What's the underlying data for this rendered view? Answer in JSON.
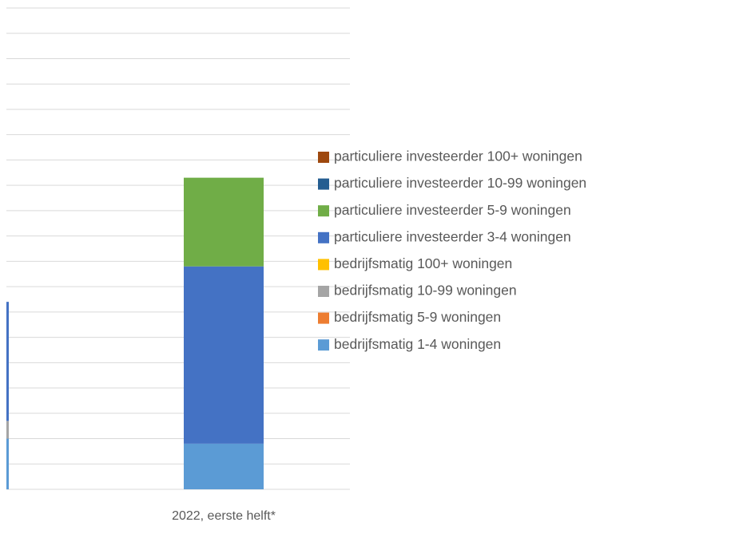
{
  "chart_data": {
    "type": "stacked_bar",
    "categories": [
      null,
      "2022, eerste helft*"
    ],
    "series": [
      {
        "name": "bedrijfsmatig 1-4 woningen",
        "color": "#5b9bd5",
        "values": [
          2.0,
          1.8
        ]
      },
      {
        "name": "bedrijfsmatig 5-9 woningen",
        "color": "#ed7d31",
        "values": [
          0,
          0
        ]
      },
      {
        "name": "bedrijfsmatig 10-99 woningen",
        "color": "#a5a5a5",
        "values": [
          0.7,
          0
        ]
      },
      {
        "name": "bedrijfsmatig 100+ woningen",
        "color": "#ffc000",
        "values": [
          0,
          0
        ]
      },
      {
        "name": "particuliere investeerder 3-4 woningen",
        "color": "#4472c4",
        "values": [
          4.7,
          7.0
        ]
      },
      {
        "name": "particuliere investeerder 5-9 woningen",
        "color": "#70ad47",
        "values": [
          0,
          3.5
        ]
      },
      {
        "name": "particuliere investeerder 10-99 woningen",
        "color": "#255e91",
        "values": [
          0,
          0
        ]
      },
      {
        "name": "particuliere investeerder 100+ woningen",
        "color": "#9e480e",
        "values": [
          0,
          0
        ]
      }
    ],
    "ylim": [
      0,
      19
    ],
    "yticks": [
      0,
      1,
      2,
      3,
      4,
      5,
      6,
      7,
      8,
      9,
      10,
      11,
      12,
      13,
      14,
      15,
      16,
      17,
      18,
      19
    ],
    "grid": true,
    "legend": "right"
  }
}
